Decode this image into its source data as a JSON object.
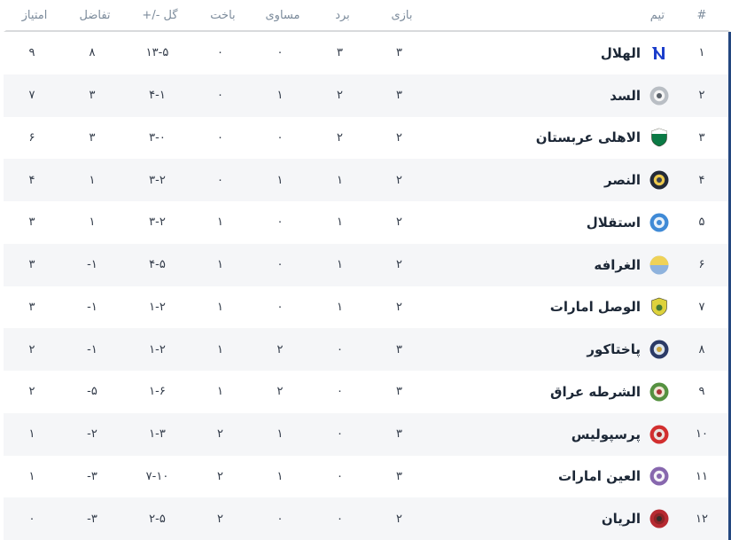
{
  "colors": {
    "accent_border": "#24477f",
    "row_alt_bg": "#f5f6f8",
    "header_text": "#7d8c9c",
    "team_text": "#1c2736",
    "number_text": "#333c4a",
    "separator": "#d8dadc"
  },
  "table": {
    "headers": {
      "rank": "#",
      "team": "تیم",
      "played": "بازی",
      "won": "برد",
      "drawn": "مساوی",
      "lost": "باخت",
      "goals": "گل -/+",
      "diff": "تفاضل",
      "points": "امتیاز"
    },
    "rows": [
      {
        "rank": "۱",
        "name": "الهلال",
        "played": "۳",
        "won": "۳",
        "drawn": "۰",
        "lost": "۰",
        "goals": "۱۳-۵",
        "diff": "۸",
        "points": "۹",
        "logo": {
          "name": "al-hilal-logo",
          "style": "mark",
          "colors": [
            "#ffffff",
            "#1c3ecb"
          ]
        }
      },
      {
        "rank": "۲",
        "name": "السد",
        "played": "۳",
        "won": "۲",
        "drawn": "۱",
        "lost": "۰",
        "goals": "۴-۱",
        "diff": "۳",
        "points": "۷",
        "logo": {
          "name": "al-sadd-logo",
          "style": "rings",
          "colors": [
            "#b9bec4",
            "#f5f5f5",
            "#5a6169"
          ]
        }
      },
      {
        "rank": "۳",
        "name": "الاهلی عربستان",
        "played": "۲",
        "won": "۲",
        "drawn": "۰",
        "lost": "۰",
        "goals": "۳-۰",
        "diff": "۳",
        "points": "۶",
        "logo": {
          "name": "al-ahli-saudi-logo",
          "style": "shield",
          "colors": [
            "#0b7a45",
            "#ffffff",
            ""
          ]
        }
      },
      {
        "rank": "۴",
        "name": "النصر",
        "played": "۲",
        "won": "۱",
        "drawn": "۱",
        "lost": "۰",
        "goals": "۳-۲",
        "diff": "۱",
        "points": "۴",
        "logo": {
          "name": "al-nassr-logo",
          "style": "rings",
          "colors": [
            "#232a38",
            "#ecc94d",
            "#3a4152"
          ]
        }
      },
      {
        "rank": "۵",
        "name": "استقلال",
        "played": "۲",
        "won": "۱",
        "drawn": "۰",
        "lost": "۱",
        "goals": "۳-۲",
        "diff": "۱",
        "points": "۳",
        "logo": {
          "name": "esteghlal-logo",
          "style": "rings",
          "colors": [
            "#3f8ad6",
            "#e8f1fa",
            "#3f8ad6"
          ]
        }
      },
      {
        "rank": "۶",
        "name": "الغرافه",
        "played": "۲",
        "won": "۱",
        "drawn": "۰",
        "lost": "۱",
        "goals": "۴-۵",
        "diff": "-۱",
        "points": "۳",
        "logo": {
          "name": "al-gharafa-logo",
          "style": "half",
          "colors": [
            "#8fb3dd",
            "#efd257"
          ]
        }
      },
      {
        "rank": "۷",
        "name": "الوصل امارات",
        "played": "۲",
        "won": "۱",
        "drawn": "۰",
        "lost": "۱",
        "goals": "۱-۲",
        "diff": "-۱",
        "points": "۳",
        "logo": {
          "name": "al-wasl-logo",
          "style": "shield",
          "colors": [
            "#ddd23c",
            "#ddd23c",
            "#447a35"
          ]
        }
      },
      {
        "rank": "۸",
        "name": "پاختاکور",
        "played": "۳",
        "won": "۰",
        "drawn": "۲",
        "lost": "۱",
        "goals": "۱-۲",
        "diff": "-۱",
        "points": "۲",
        "logo": {
          "name": "pakhtakor-logo",
          "style": "rings",
          "colors": [
            "#2b3a66",
            "#dde6ee",
            "#c9a33f"
          ]
        }
      },
      {
        "rank": "۹",
        "name": "الشرطه عراق",
        "played": "۳",
        "won": "۰",
        "drawn": "۲",
        "lost": "۱",
        "goals": "۱-۶",
        "diff": "-۵",
        "points": "۲",
        "logo": {
          "name": "al-shorta-logo",
          "style": "rings",
          "colors": [
            "#559140",
            "#eee6d4",
            "#a93434"
          ]
        }
      },
      {
        "rank": "۱۰",
        "name": "پرسپولیس",
        "played": "۳",
        "won": "۰",
        "drawn": "۱",
        "lost": "۲",
        "goals": "۱-۳",
        "diff": "-۲",
        "points": "۱",
        "logo": {
          "name": "persepolis-logo",
          "style": "rings",
          "colors": [
            "#d22f2f",
            "#e8e4e0",
            "#b22222"
          ]
        }
      },
      {
        "rank": "۱۱",
        "name": "العین امارات",
        "played": "۳",
        "won": "۰",
        "drawn": "۱",
        "lost": "۲",
        "goals": "۷-۱۰",
        "diff": "-۳",
        "points": "۱",
        "logo": {
          "name": "al-ain-logo",
          "style": "rings",
          "colors": [
            "#8767ae",
            "#f5f3f8",
            "#8767ae"
          ]
        }
      },
      {
        "rank": "۱۲",
        "name": "الریان",
        "played": "۲",
        "won": "۰",
        "drawn": "۰",
        "lost": "۲",
        "goals": "۲-۵",
        "diff": "-۳",
        "points": "۰",
        "logo": {
          "name": "al-rayyan-logo",
          "style": "rings",
          "colors": [
            "#b62a31",
            "#8c2426",
            "#332e2a"
          ]
        }
      }
    ]
  }
}
